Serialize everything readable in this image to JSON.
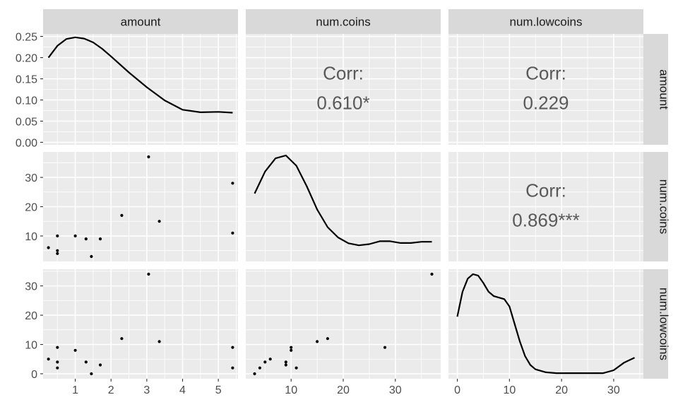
{
  "chart_data": {
    "type": "scatter-matrix",
    "variables": [
      "amount",
      "num.coins",
      "num.lowcoins"
    ],
    "points": {
      "amount": [
        0.25,
        0.5,
        0.5,
        0.5,
        1.0,
        1.3,
        1.45,
        1.7,
        2.3,
        3.05,
        3.35,
        5.4,
        5.4
      ],
      "num.coins": [
        6,
        5,
        4,
        10,
        10,
        9,
        3,
        9,
        17,
        37,
        15,
        28,
        11
      ],
      "num.lowcoins": [
        5,
        4,
        2,
        9,
        8,
        4,
        0,
        3,
        12,
        34,
        11,
        9,
        2
      ]
    },
    "density_curves": {
      "amount": [
        [
          0.25,
          0.2
        ],
        [
          0.5,
          0.228
        ],
        [
          0.75,
          0.244
        ],
        [
          1.0,
          0.248
        ],
        [
          1.25,
          0.245
        ],
        [
          1.5,
          0.236
        ],
        [
          1.75,
          0.221
        ],
        [
          2.0,
          0.203
        ],
        [
          2.5,
          0.165
        ],
        [
          3.0,
          0.13
        ],
        [
          3.5,
          0.099
        ],
        [
          4.0,
          0.077
        ],
        [
          4.5,
          0.071
        ],
        [
          5.0,
          0.072
        ],
        [
          5.4,
          0.07
        ]
      ],
      "num.coins": [
        [
          3,
          24.5
        ],
        [
          5,
          32
        ],
        [
          7,
          36.5
        ],
        [
          9,
          37.5
        ],
        [
          11,
          34
        ],
        [
          13,
          27
        ],
        [
          15,
          19
        ],
        [
          17,
          13
        ],
        [
          19,
          9.5
        ],
        [
          21,
          7.5
        ],
        [
          23,
          6.8
        ],
        [
          25,
          7.2
        ],
        [
          27,
          8.2
        ],
        [
          29,
          8.2
        ],
        [
          31,
          7.6
        ],
        [
          33,
          7.6
        ],
        [
          35,
          8.0
        ],
        [
          37,
          8.0
        ]
      ],
      "num.lowcoins": [
        [
          0,
          19.5
        ],
        [
          1,
          28
        ],
        [
          2,
          32.5
        ],
        [
          3,
          34
        ],
        [
          4,
          33.5
        ],
        [
          5,
          31
        ],
        [
          6,
          28
        ],
        [
          7,
          26.5
        ],
        [
          8,
          26
        ],
        [
          9,
          25.5
        ],
        [
          10,
          23
        ],
        [
          11,
          17
        ],
        [
          12,
          11
        ],
        [
          13,
          6
        ],
        [
          14,
          3
        ],
        [
          15,
          1.5
        ],
        [
          17,
          0.5
        ],
        [
          19,
          0.2
        ],
        [
          22,
          0.2
        ],
        [
          25,
          0.2
        ],
        [
          28,
          0.2
        ],
        [
          30,
          1.2
        ],
        [
          32,
          3.8
        ],
        [
          34,
          5.5
        ]
      ]
    },
    "correlations": [
      {
        "row": "amount",
        "col": "num.coins",
        "label": "Corr:",
        "value": "0.610*"
      },
      {
        "row": "amount",
        "col": "num.lowcoins",
        "label": "Corr:",
        "value": "0.229"
      },
      {
        "row": "num.coins",
        "col": "num.lowcoins",
        "label": "Corr:",
        "value": "0.869***"
      }
    ],
    "axes": {
      "amount": {
        "range": [
          0.1,
          5.55
        ],
        "ticks": [
          1,
          2,
          3,
          4,
          5
        ],
        "tick_labels": [
          "1",
          "2",
          "3",
          "4",
          "5"
        ]
      },
      "num.coins": {
        "range": [
          1.3,
          38.7
        ],
        "ticks": [
          10,
          20,
          30
        ],
        "tick_labels": [
          "10",
          "20",
          "30"
        ]
      },
      "num.lowcoins": {
        "range": [
          -1.7,
          35.7
        ],
        "ticks": [
          0,
          10,
          20,
          30
        ],
        "tick_labels": [
          "0",
          "10",
          "20",
          "30"
        ]
      },
      "density_row1": {
        "range": [
          -0.006,
          0.256
        ],
        "ticks": [
          0,
          0.05,
          0.1,
          0.15,
          0.2,
          0.25
        ],
        "tick_labels": [
          "0.00",
          "0.05",
          "0.10",
          "0.15",
          "0.20",
          "0.25"
        ]
      }
    },
    "strips": {
      "top": [
        "amount",
        "num.coins",
        "num.lowcoins"
      ],
      "right": [
        "amount",
        "num.coins",
        "num.lowcoins"
      ]
    },
    "grid": true,
    "colors": {
      "panel_bg": "#ebebeb",
      "grid": "#ffffff",
      "strip_bg": "#d9d9d9",
      "strip_text": "#1a1a1a",
      "tick_text": "#4d4d4d",
      "corr_text": "#595959",
      "data": "#000000"
    }
  }
}
